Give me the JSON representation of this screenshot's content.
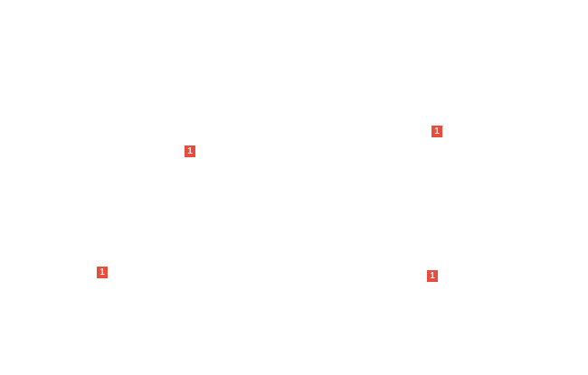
{
  "page": {
    "background_color": "#ffffff"
  },
  "colors": {
    "badge_background": "#e74c3c",
    "badge_text": "#ffffff"
  },
  "hotspots": [
    {
      "label": "1"
    },
    {
      "label": "1"
    },
    {
      "label": "1"
    },
    {
      "label": "1"
    }
  ]
}
